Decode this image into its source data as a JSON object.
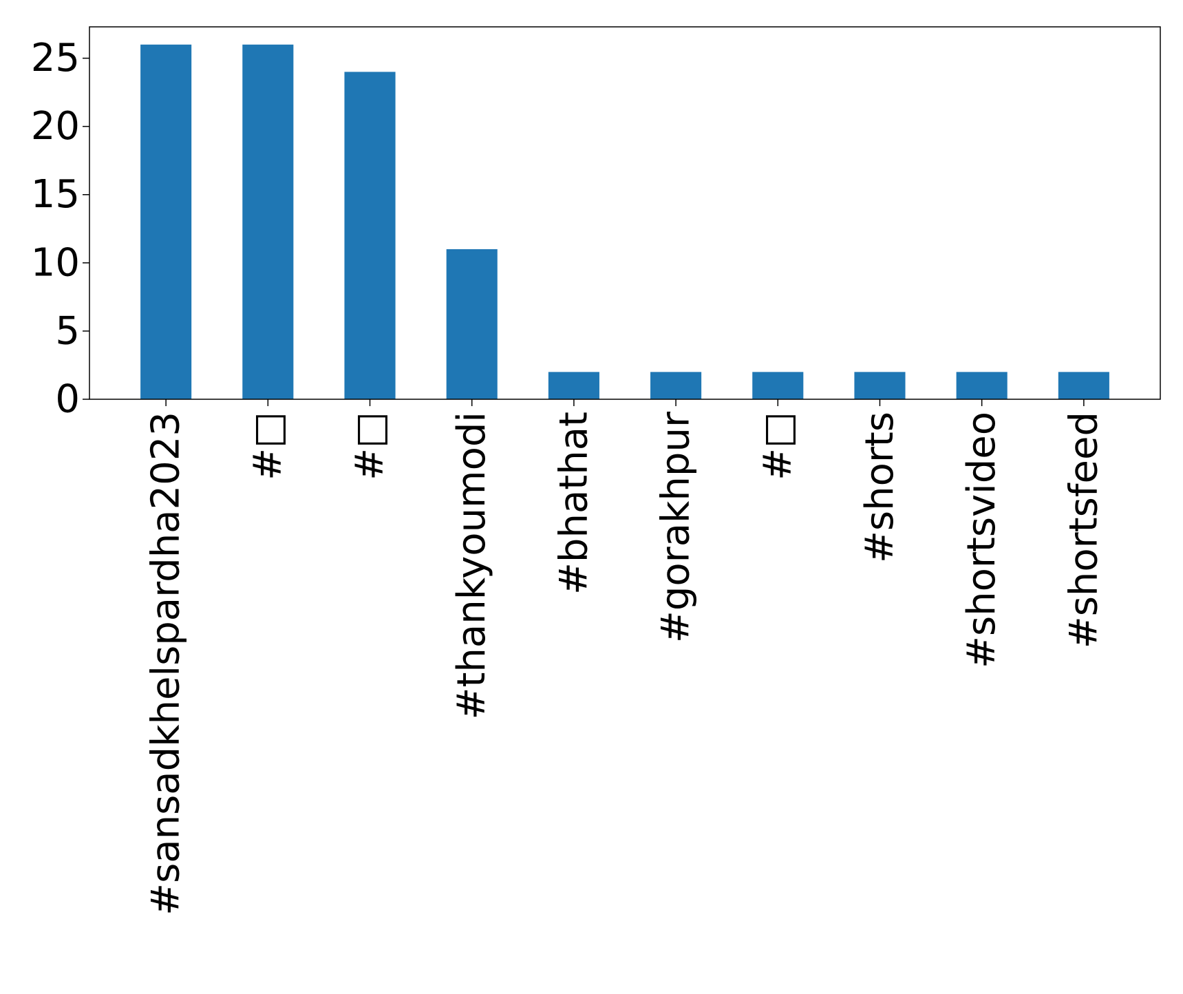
{
  "chart_data": {
    "type": "bar",
    "categories": [
      "#sansadkhelspardha2023",
      "#□",
      "#□",
      "#thankyoumodi",
      "#bhathat",
      "#gorakhpur",
      "#□",
      "#shorts",
      "#shortsvideo",
      "#shortsfeed"
    ],
    "values": [
      26,
      26,
      24,
      11,
      2,
      2,
      2,
      2,
      2,
      2
    ],
    "title": "",
    "xlabel": "",
    "ylabel": "",
    "ylim": [
      0,
      27.3
    ],
    "yticks": [
      0,
      5,
      10,
      15,
      20,
      25
    ],
    "bar_color": "#1f77b4",
    "grid": false,
    "x_tick_rotation": "vertical"
  }
}
